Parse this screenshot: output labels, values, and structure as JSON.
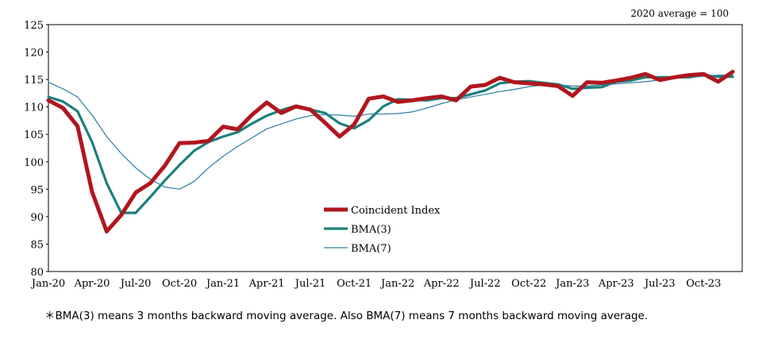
{
  "chart_data": {
    "type": "line",
    "title": "",
    "xlabel": "",
    "ylabel": "",
    "note": "2020 average = 100",
    "ylim": [
      80,
      125
    ],
    "yticks": [
      "125",
      "120",
      "115",
      "110",
      "105",
      "100",
      "95",
      "90",
      "85",
      "80"
    ],
    "x": [
      "Jan-20",
      "Feb-20",
      "Mar-20",
      "Apr-20",
      "May-20",
      "Jun-20",
      "Jul-20",
      "Aug-20",
      "Sep-20",
      "Oct-20",
      "Nov-20",
      "Dec-20",
      "Jan-21",
      "Feb-21",
      "Mar-21",
      "Apr-21",
      "May-21",
      "Jun-21",
      "Jul-21",
      "Aug-21",
      "Sep-21",
      "Oct-21",
      "Nov-21",
      "Dec-21",
      "Jan-22",
      "Feb-22",
      "Mar-22",
      "Apr-22",
      "May-22",
      "Jun-22",
      "Jul-22",
      "Aug-22",
      "Sep-22",
      "Oct-22",
      "Nov-22",
      "Dec-22",
      "Jan-23",
      "Feb-23",
      "Mar-23",
      "Apr-23",
      "May-23",
      "Jun-23",
      "Jul-23",
      "Aug-23",
      "Sep-23",
      "Oct-23",
      "Nov-23",
      "Dec-23"
    ],
    "xtick_labels": [
      "Jan-20",
      "Apr-20",
      "Jul-20",
      "Oct-20",
      "Jan-21",
      "Apr-21",
      "Jul-21",
      "Oct-21",
      "Jan-22",
      "Apr-22",
      "Jul-22",
      "Oct-22",
      "Jan-23",
      "Apr-23",
      "Jul-23",
      "Oct-23"
    ],
    "legend_position": "center",
    "grid": false,
    "series": [
      {
        "name": "Coincident Index",
        "color": "#b0161e",
        "values": [
          111.2,
          109.8,
          106.5,
          94.5,
          87.3,
          90.3,
          94.4,
          96.1,
          99.3,
          103.4,
          103.5,
          103.8,
          106.4,
          105.9,
          108.6,
          110.8,
          108.9,
          110.1,
          109.5,
          107.1,
          104.6,
          106.8,
          111.5,
          111.9,
          110.9,
          111.2,
          111.6,
          111.9,
          111.2,
          113.7,
          114.0,
          115.3,
          114.5,
          114.3,
          114.1,
          113.8,
          112.0,
          114.5,
          114.4,
          114.8,
          115.3,
          116.0,
          114.9,
          115.4,
          115.8,
          116.0,
          114.6,
          116.4
        ]
      },
      {
        "name": "BMA(3)",
        "color": "#1d7f7c",
        "values": [
          111.8,
          111.0,
          109.2,
          103.6,
          96.1,
          90.7,
          90.7,
          93.6,
          96.6,
          99.4,
          102.0,
          103.6,
          104.6,
          105.4,
          107.0,
          108.4,
          109.4,
          110.2,
          109.5,
          108.9,
          107.0,
          106.1,
          107.6,
          110.1,
          111.4,
          111.3,
          111.2,
          111.6,
          111.6,
          112.3,
          113.0,
          114.3,
          114.6,
          114.7,
          114.4,
          114.1,
          113.3,
          113.5,
          113.6,
          114.6,
          114.8,
          115.4,
          115.4,
          115.4,
          115.4,
          115.8,
          115.5,
          115.5
        ]
      },
      {
        "name": "BMA(7)",
        "color": "#2a7fa0",
        "values": [
          114.5,
          113.3,
          111.8,
          108.5,
          104.6,
          101.5,
          98.9,
          96.8,
          95.4,
          95.0,
          96.4,
          98.9,
          101.0,
          102.8,
          104.4,
          106.0,
          106.9,
          107.8,
          108.4,
          108.6,
          108.5,
          108.3,
          108.7,
          108.7,
          108.8,
          109.1,
          109.8,
          110.6,
          111.3,
          111.8,
          112.3,
          112.8,
          113.2,
          113.7,
          114.0,
          114.0,
          113.8,
          113.8,
          114.0,
          114.2,
          114.4,
          114.6,
          114.9,
          115.2,
          115.4,
          115.6,
          115.8,
          115.8
        ]
      }
    ]
  },
  "footnote": "＊BMA(3) means 3 months backward moving average. Also BMA(7) means 7 months backward moving average."
}
